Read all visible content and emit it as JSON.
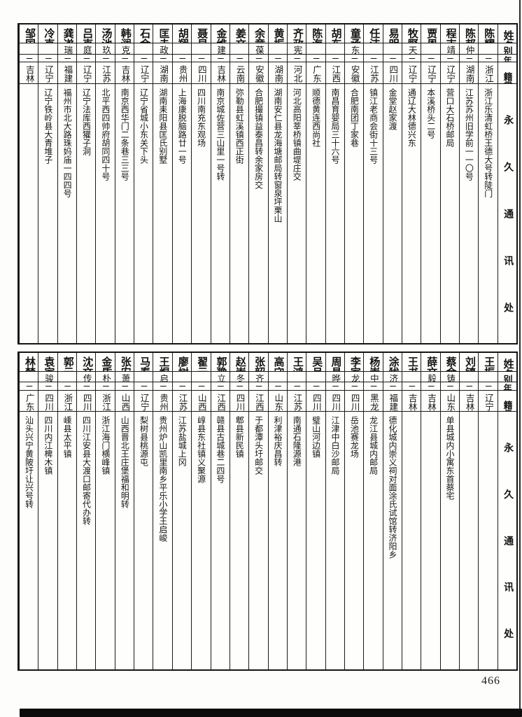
{
  "page": {
    "number": "466"
  },
  "headers": {
    "name": "姓名",
    "alias": "别号",
    "age": "年龄",
    "native": "籍贯",
    "address": "永久通讯处"
  },
  "tables": [
    {
      "people": [
        {
          "name": "陈耀达",
          "note": "",
          "alias": "",
          "age": "二二",
          "native": "浙江永嘉",
          "address": "浙江乐清虹桥王德大号转陡门"
        },
        {
          "name": "陈邦鑫",
          "note": "",
          "alias": "仲略",
          "age": "二一",
          "native": "湖南道县",
          "address": "江苏苏州旧学前一一〇号"
        },
        {
          "name": "程吉阶",
          "note": "",
          "alias": "靖宇",
          "age": "二四",
          "native": "辽宁营口",
          "address": "营口大石桥邮局"
        },
        {
          "name": "贾恩久",
          "note": "①",
          "alias": "",
          "age": "二四",
          "native": "辽宁本溪",
          "address": "本溪桥头二号"
        },
        {
          "name": "牧野",
          "note": "",
          "alias": "天牧",
          "age": "二五",
          "native": "辽宁通辽",
          "address": "通辽大林德兴东"
        },
        {
          "name": "易明道",
          "note": "",
          "alias": "",
          "age": "二五",
          "native": "四川金堂",
          "address": "金堂赵家渡"
        },
        {
          "name": "任洁",
          "note": "",
          "alias": "",
          "age": "二〇",
          "native": "江苏镇江",
          "address": "镇江老商会街十三号"
        },
        {
          "name": "童承启",
          "note": "",
          "alias": "东白",
          "age": "二二",
          "native": "安徽合肥",
          "address": "合肥南团丁家巷"
        },
        {
          "name": "胡东美",
          "note": "",
          "alias": "",
          "age": "二三",
          "native": "江西南昌",
          "address": "南昌育婴局三十六号"
        },
        {
          "name": "陈海雄",
          "note": "",
          "alias": "",
          "age": "二一",
          "native": "广东顺德",
          "address": "顺德黄连西尚社"
        },
        {
          "name": "齐政新",
          "note": "",
          "alias": "宪五",
          "age": "二四",
          "native": "河北蠡县",
          "address": "河北高阳莘桥镇曲堤庄交"
        },
        {
          "name": "黄振宇",
          "note": "",
          "alias": "",
          "age": "二三",
          "native": "湖南永兴",
          "address": "湖南安仁县龙海塘邮局转窗泉坪栗山"
        },
        {
          "name": "余章元",
          "note": "",
          "alias": "葆初",
          "age": "二三",
          "native": "安徽合肥",
          "address": "合肥撮镇益泰昌转余家房交"
        },
        {
          "name": "姜文斋",
          "note": "",
          "alias": "",
          "age": "二四",
          "native": "云南弥勒",
          "address": "弥勒县虹溪镇西正街"
        },
        {
          "name": "金维",
          "note": "",
          "alias": "建华",
          "age": "二四",
          "native": "吉林吉林",
          "address": "南京城佐营三山里一号转"
        },
        {
          "name": "聂显谟",
          "note": "",
          "alias": "",
          "age": "二一",
          "native": "四川南充",
          "address": "四川南充东观场"
        },
        {
          "name": "胡翔",
          "note": "",
          "alias": "",
          "age": "二一",
          "native": "贵州贵阳",
          "address": "上海康脱脑路廿一号"
        },
        {
          "name": "匡圭训",
          "note": "",
          "alias": "政",
          "age": "二一",
          "native": "湖南永兴",
          "address": "湖南耒阳县匡氏别墅"
        },
        {
          "name": "石金格",
          "note": "",
          "alias": "",
          "age": "二三",
          "native": "辽宁沈阳",
          "address": "辽宁省城小东关下头"
        },
        {
          "name": "韩澜",
          "note": "",
          "alias": "克山",
          "age": "二〇",
          "native": "吉林滨江",
          "address": "南京西华门二条巷三三号"
        },
        {
          "name": "汤池",
          "note": "",
          "alias": "玖磊",
          "age": "二〇",
          "native": "江苏如皋",
          "address": "北平西四帅府胡同四十号"
        },
        {
          "name": "吕克",
          "note": "",
          "alias": "庭秀",
          "age": "二一",
          "native": "辽宁法库",
          "address": "辽宁法库西獾子洞"
        },
        {
          "name": "龚遂",
          "note": "",
          "alias": "瑞衍",
          "age": "二〇",
          "native": "福建闽侯",
          "address": "福州市北大路珠妈庙一四四号"
        },
        {
          "name": "冷克",
          "note": "",
          "alias": "",
          "age": "二三",
          "native": "辽宁铁岭",
          "address": "辽宁铁岭县大青堆子"
        },
        {
          "name": "邹国璋",
          "note": "",
          "alias": "",
          "age": "二三",
          "native": "吉林颒穆",
          "address": ""
        }
      ]
    },
    {
      "people": [
        {
          "name": "王振祥",
          "note": "",
          "alias": "",
          "age": "二三",
          "native": "辽宁沈阳",
          "address": ""
        },
        {
          "name": "刘镇华",
          "note": "",
          "alias": "",
          "age": "二一",
          "native": "吉林宾县",
          "address": ""
        },
        {
          "name": "蔡金鼎",
          "note": "",
          "alias": "铸九",
          "age": "二三",
          "native": "山东单县",
          "address": "单县城内小寓东首蔡宅"
        },
        {
          "name": "薛文儒",
          "note": "",
          "alias": "毅伯",
          "age": "二四",
          "native": "吉林阿城",
          "address": ""
        },
        {
          "name": "王书田",
          "note": "",
          "alias": "",
          "age": "二三",
          "native": "吉林桦甸",
          "address": ""
        },
        {
          "name": "涂犹龙",
          "note": "②",
          "alias": "济痴",
          "age": "二一",
          "native": "福建德化",
          "address": "德化城内崇义祠对面涂氏试馆转济阳乡"
        },
        {
          "name": "杨崇侠",
          "note": "",
          "alias": "中一",
          "age": "二三",
          "native": "黑龙江龙江",
          "address": "龙江县城内邮局"
        },
        {
          "name": "李家驹",
          "note": "",
          "alias": "龙骧",
          "age": "二四",
          "native": "四川岳池",
          "address": "岳池赛龙场"
        },
        {
          "name": "周昌煜",
          "note": "",
          "alias": "晔文",
          "age": "二三",
          "native": "四川江津",
          "address": "江津中白沙邮局"
        },
        {
          "name": "吴月枢",
          "note": "",
          "alias": "",
          "age": "二〇",
          "native": "四川璧山",
          "address": "璧山河边镇"
        },
        {
          "name": "王鸿升",
          "note": "",
          "alias": "",
          "age": "二一",
          "native": "江苏南通",
          "address": "南通石隆源港"
        },
        {
          "name": "高守让",
          "note": "",
          "alias": "",
          "age": "二五",
          "native": "山东利津",
          "address": "利津裕庆昌转"
        },
        {
          "name": "张韶",
          "note": "",
          "alias": "齐闻",
          "age": "二〇",
          "native": "江西于都",
          "address": "于都潭头圩邮交"
        },
        {
          "name": "赵崇善",
          "note": "",
          "alias": "冬可",
          "age": "二五",
          "native": "四川郫县",
          "address": "郫县新民镇"
        },
        {
          "name": "郭豫章",
          "note": "",
          "alias": "立诚",
          "age": "二三",
          "native": "江西赣县",
          "address": "赣县古城巷二四号"
        },
        {
          "name": "翟云鹏",
          "note": "",
          "alias": "",
          "age": "二一",
          "native": "山西崞县",
          "address": "崞县东社镇义聚源"
        },
        {
          "name": "廖树棠",
          "note": "",
          "alias": "",
          "age": "二四",
          "native": "江苏盐城",
          "address": "江苏盐城上冈"
        },
        {
          "name": "王煜",
          "note": "",
          "alias": "启度",
          "age": "二四",
          "native": "贵州炉山",
          "address": "贵州炉山凯里南乡平乐小学王启峻"
        },
        {
          "name": "马春元",
          "note": "",
          "alias": "",
          "age": "二三",
          "native": "辽宁沈阳",
          "address": "梨树县桃源屯"
        },
        {
          "name": "张安世",
          "note": "",
          "alias": "萧斋",
          "age": "二三",
          "native": "山西浑源",
          "address": "山西晋北王庄堡福和明转"
        },
        {
          "name": "金质",
          "note": "",
          "alias": "朴夫",
          "age": "二〇",
          "native": "浙江温岭",
          "address": "浙江海门横峰镇"
        },
        {
          "name": "沈文",
          "note": "",
          "alias": "传仪",
          "age": "二四",
          "native": "四川泸县",
          "address": "四川江安县大渡口邮寄代办转"
        },
        {
          "name": "郭云龙",
          "note": "",
          "alias": "",
          "age": "二三",
          "native": "浙江嵊县",
          "address": "嵊县太平镇"
        },
        {
          "name": "袁家驹",
          "note": "",
          "alias": "骏程",
          "age": "二七",
          "native": "四川内江",
          "address": "四川内江椑木镇"
        },
        {
          "name": "林梦桂",
          "note": "",
          "alias": "",
          "age": "二三",
          "native": "广东兴宁",
          "address": "汕头兴宁黄陂圩让兴号转"
        }
      ]
    }
  ]
}
